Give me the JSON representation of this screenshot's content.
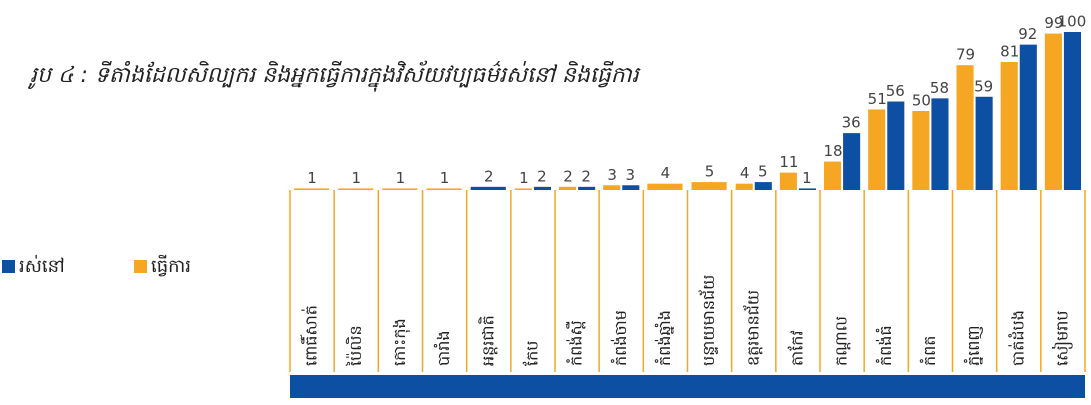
{
  "chart_data": {
    "type": "bar",
    "title": "រូប ៤ : ទីតាំងដែលសិល្បករ និងអ្នកធ្វើការក្នុងវិស័យវប្បធម៌រស់នៅ និងធ្វើការ",
    "categories": [
      "ពោធិ៍សាត់",
      "ប៉ៃលិន",
      "កោះកុង",
      "បារាំង",
      "អន្តរជាតិ",
      "កែប",
      "កំពង់ស្ពឺ",
      "កំពង់ចាម",
      "កំពង់ឆ្នាំង",
      "បន្ទាយមានជ័យ",
      "ឧត្ដរមានជ័យ",
      "តាកែវ",
      "កណ្ដាល",
      "កំពង់ធំ",
      "កំពត",
      "ភ្នំពេញ",
      "បាត់ដំបង",
      "សៀមរាប"
    ],
    "series": [
      {
        "name": "ធ្វើការ",
        "color": "#f5a623",
        "values": [
          1,
          1,
          1,
          1,
          null,
          1,
          2,
          3,
          4,
          5,
          4,
          11,
          18,
          51,
          50,
          79,
          81,
          99
        ]
      },
      {
        "name": "រស់នៅ",
        "color": "#0d4fa3",
        "values": [
          null,
          null,
          null,
          null,
          2,
          2,
          2,
          3,
          null,
          null,
          5,
          1,
          36,
          56,
          58,
          59,
          92,
          100
        ]
      }
    ],
    "ylim": [
      0,
      100
    ]
  }
}
